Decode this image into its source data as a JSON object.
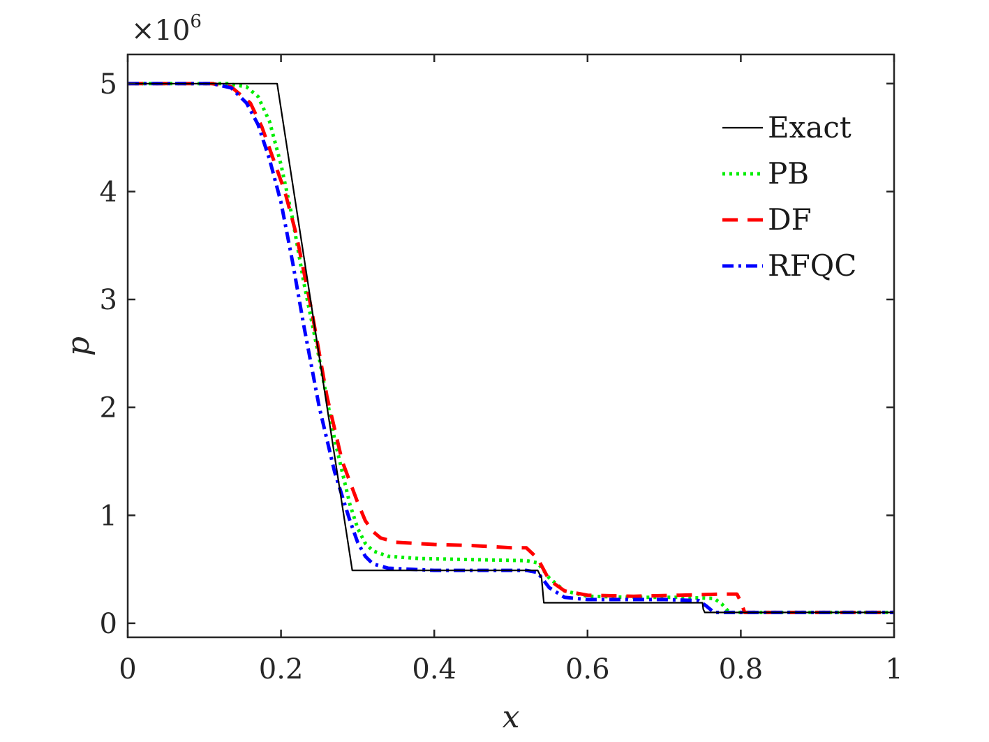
{
  "chart_data": {
    "type": "line",
    "title": "",
    "xlabel": "x",
    "ylabel": "p",
    "xlim": [
      0,
      1
    ],
    "ylim": [
      -0.13,
      5.27
    ],
    "y_scale_label": "×10",
    "y_scale_exponent": "6",
    "grid": false,
    "legend_position": "top-right",
    "x_ticks": [
      0,
      0.2,
      0.4,
      0.6,
      0.8,
      1
    ],
    "x_tick_labels": [
      "0",
      "0.2",
      "0.4",
      "0.6",
      "0.8",
      "1"
    ],
    "y_ticks": [
      0,
      1,
      2,
      3,
      4,
      5
    ],
    "y_tick_labels": [
      "0",
      "1",
      "2",
      "3",
      "4",
      "5"
    ],
    "series": [
      {
        "name": "Exact",
        "color": "#000000",
        "style": "solid",
        "x": [
          0,
          0.195,
          0.293,
          0.535,
          0.54,
          0.543,
          0.75,
          0.751,
          0.753,
          1.0
        ],
        "y": [
          5.0,
          5.0,
          0.49,
          0.49,
          0.42,
          0.19,
          0.19,
          0.13,
          0.1,
          0.1
        ]
      },
      {
        "name": "PB",
        "color": "#00ee00",
        "style": "dotted",
        "x": [
          0,
          0.13,
          0.155,
          0.17,
          0.185,
          0.2,
          0.215,
          0.23,
          0.25,
          0.27,
          0.29,
          0.3,
          0.31,
          0.32,
          0.34,
          0.38,
          0.45,
          0.52,
          0.535,
          0.55,
          0.57,
          0.6,
          0.66,
          0.72,
          0.765,
          0.775,
          0.785,
          1.0
        ],
        "y": [
          5.0,
          5.0,
          4.97,
          4.88,
          4.65,
          4.25,
          3.75,
          3.15,
          2.45,
          1.7,
          1.1,
          0.88,
          0.74,
          0.67,
          0.62,
          0.6,
          0.59,
          0.58,
          0.56,
          0.42,
          0.3,
          0.25,
          0.24,
          0.24,
          0.23,
          0.18,
          0.1,
          0.1
        ]
      },
      {
        "name": "DF",
        "color": "#ff0000",
        "style": "dashed",
        "x": [
          0,
          0.11,
          0.135,
          0.16,
          0.175,
          0.19,
          0.205,
          0.22,
          0.24,
          0.26,
          0.28,
          0.3,
          0.31,
          0.32,
          0.33,
          0.35,
          0.4,
          0.45,
          0.5,
          0.52,
          0.535,
          0.55,
          0.57,
          0.6,
          0.66,
          0.72,
          0.775,
          0.795,
          0.8,
          0.805,
          1.0
        ],
        "y": [
          5.0,
          5.0,
          4.97,
          4.82,
          4.6,
          4.3,
          4.0,
          3.6,
          2.9,
          2.1,
          1.5,
          1.12,
          0.95,
          0.85,
          0.79,
          0.75,
          0.73,
          0.72,
          0.7,
          0.7,
          0.6,
          0.4,
          0.3,
          0.26,
          0.25,
          0.26,
          0.27,
          0.27,
          0.2,
          0.1,
          0.1
        ]
      },
      {
        "name": "RFQC",
        "color": "#0000ff",
        "style": "dashdot",
        "x": [
          0,
          0.11,
          0.135,
          0.155,
          0.17,
          0.185,
          0.2,
          0.215,
          0.23,
          0.25,
          0.27,
          0.29,
          0.3,
          0.31,
          0.32,
          0.34,
          0.4,
          0.5,
          0.52,
          0.535,
          0.55,
          0.57,
          0.6,
          0.7,
          0.745,
          0.755,
          0.765,
          1.0
        ],
        "y": [
          5.0,
          5.0,
          4.96,
          4.82,
          4.62,
          4.3,
          3.9,
          3.35,
          2.75,
          2.0,
          1.4,
          0.95,
          0.75,
          0.62,
          0.55,
          0.51,
          0.49,
          0.49,
          0.49,
          0.47,
          0.33,
          0.24,
          0.22,
          0.22,
          0.21,
          0.16,
          0.1,
          0.1
        ]
      }
    ]
  }
}
